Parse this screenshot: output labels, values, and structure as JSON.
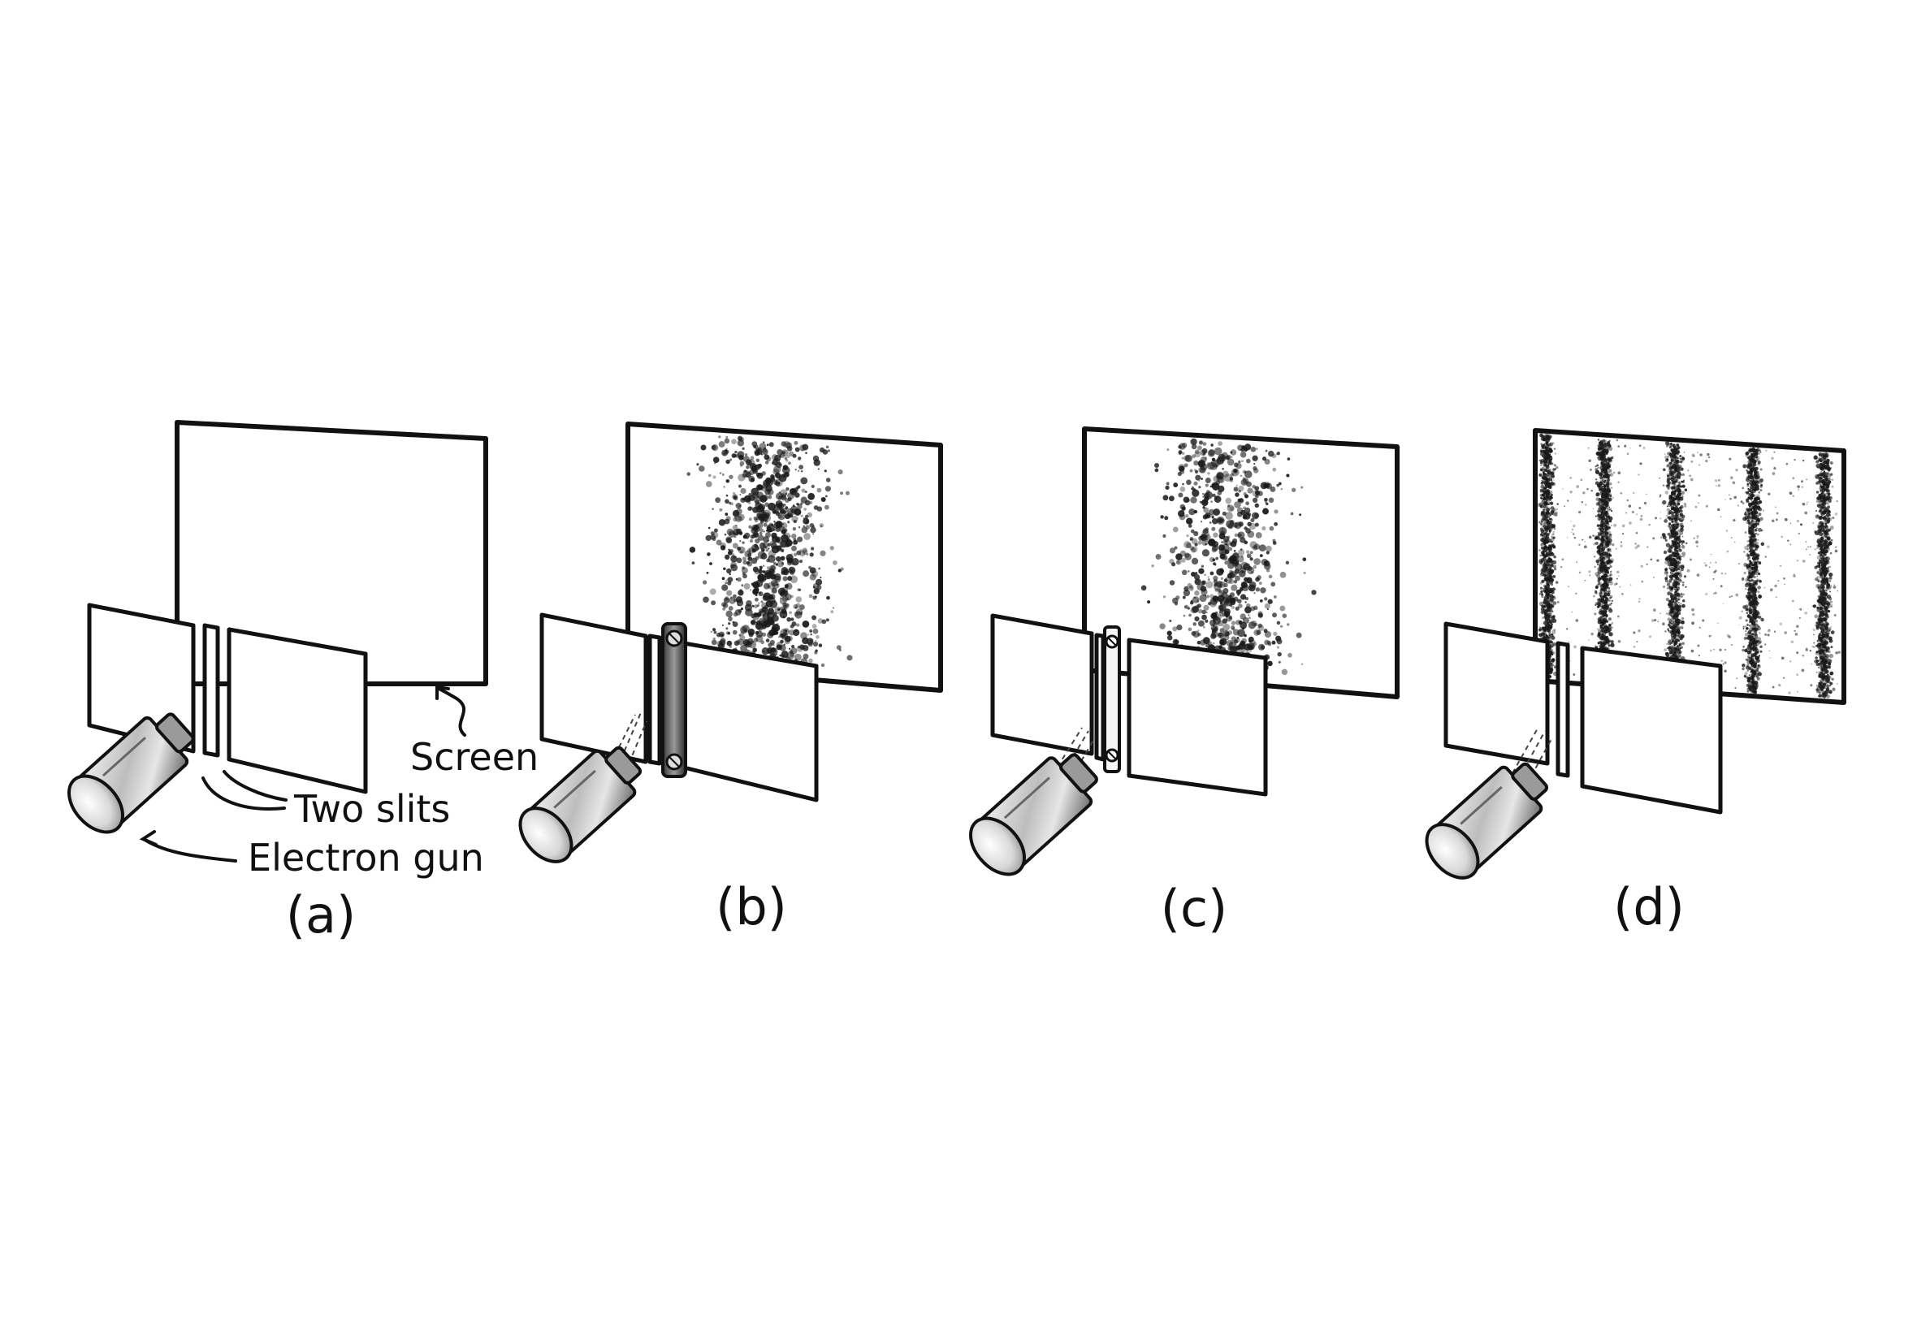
{
  "labels": {
    "screen": "Screen",
    "two_slits": "Two slits",
    "electron_gun": "Electron gun"
  },
  "panels": [
    {
      "id": "a",
      "caption": "(a)",
      "pattern": "none",
      "detector": "none"
    },
    {
      "id": "b",
      "caption": "(b)",
      "pattern": "central-blob",
      "detector": "bulky-detector"
    },
    {
      "id": "c",
      "caption": "(c)",
      "pattern": "central-blob",
      "detector": "thin-detector"
    },
    {
      "id": "d",
      "caption": "(d)",
      "pattern": "interference-fringes",
      "detector": "none"
    }
  ],
  "colors": {
    "ink": "#111111",
    "paper": "#ffffff",
    "dot": "#1a1a1a"
  }
}
